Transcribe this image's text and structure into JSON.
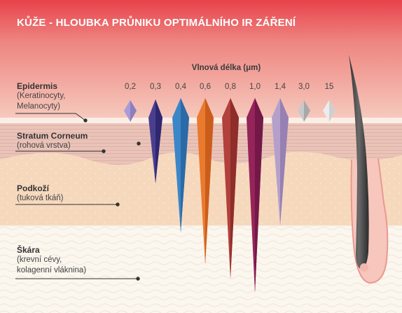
{
  "title": "KŮŽE - HLOUBKA PRŮNIKU OPTIMÁLNÍHO IR ZÁŘENÍ",
  "wavelength_title": "Vlnová délka (μm)",
  "layers": [
    {
      "name": "Epidermis",
      "sub1": "(Keratinocyty,",
      "sub2": "Melanocyty)"
    },
    {
      "name": "Stratum Corneum",
      "sub1": "(rohová vrstva)",
      "sub2": ""
    },
    {
      "name": "Podkoží",
      "sub1": "(tuková tkáň)",
      "sub2": ""
    },
    {
      "name": "Škára",
      "sub1": "(krevní cévy,",
      "sub2": "kolagenní vláknina)"
    }
  ],
  "wavelengths": [
    {
      "label": "0,2",
      "color": "#a99bd4",
      "penetration": "epidermis"
    },
    {
      "label": "0,3",
      "color": "#4a3f8f",
      "penetration": "podkoží (horní)"
    },
    {
      "label": "0,4",
      "color": "#3c86c8",
      "penetration": "podkoží (hluboko)"
    },
    {
      "label": "0,6",
      "color": "#ea7a2e",
      "penetration": "škára"
    },
    {
      "label": "0,8",
      "color": "#b2403c",
      "penetration": "škára"
    },
    {
      "label": "1,0",
      "color": "#95245a",
      "penetration": "škára (nejhlouběji)"
    },
    {
      "label": "1,4",
      "color": "#b5a0cb",
      "penetration": "podkoží"
    },
    {
      "label": "3,0",
      "color": "#bdbdbd",
      "penetration": "epidermis"
    },
    {
      "label": "15",
      "color": "#e2e2e2",
      "penetration": "epidermis"
    }
  ],
  "colors": {
    "header_red": "#e8434a",
    "skin_pink": "#f2b9a9",
    "stratum": "#eac5bb",
    "subcutis": "#f6d9bf",
    "dermis": "#fbf6ee",
    "hair": "#3a3a3a"
  }
}
